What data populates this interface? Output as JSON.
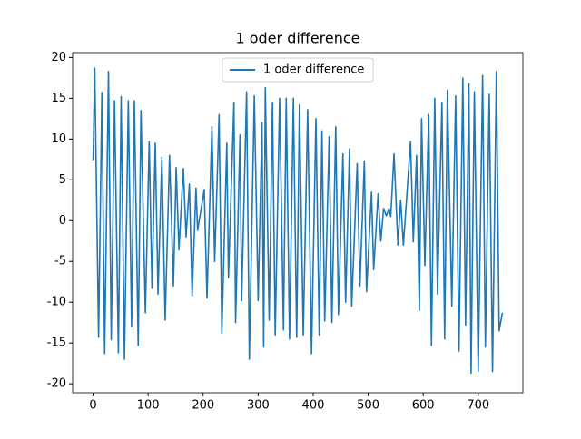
{
  "chart_data": {
    "type": "line",
    "title": "1 oder difference",
    "x": [
      0,
      3,
      10,
      16,
      21,
      28,
      33,
      39,
      46,
      51,
      57,
      64,
      70,
      75,
      82,
      87,
      95,
      102,
      107,
      113,
      118,
      125,
      131,
      139,
      146,
      151,
      156,
      164,
      169,
      175,
      180,
      187,
      190,
      202,
      207,
      216,
      221,
      229,
      234,
      243,
      246,
      256,
      259,
      267,
      270,
      279,
      284,
      293,
      300,
      307,
      310,
      313,
      320,
      326,
      331,
      339,
      346,
      351,
      357,
      364,
      370,
      375,
      382,
      390,
      397,
      405,
      411,
      416,
      421,
      429,
      434,
      441,
      446,
      454,
      459,
      466,
      470,
      480,
      485,
      493,
      497,
      506,
      510,
      518,
      523,
      528,
      533,
      538,
      541,
      547,
      554,
      559,
      564,
      577,
      582,
      588,
      593,
      597,
      603,
      610,
      615,
      621,
      626,
      634,
      639,
      644,
      652,
      659,
      665,
      672,
      677,
      683,
      687,
      693,
      700,
      708,
      713,
      720,
      726,
      733,
      738,
      744
    ],
    "series": [
      {
        "name": "1 oder difference",
        "color": "#1f77b4",
        "values": [
          7.4,
          18.7,
          -14.3,
          15.7,
          -16.3,
          18.3,
          -14.6,
          14.7,
          -16.2,
          15.2,
          -17,
          14.7,
          -13,
          14.7,
          -15.3,
          13.5,
          -11.3,
          9.7,
          -8.3,
          9.5,
          -9,
          7.8,
          -12.2,
          8,
          -8,
          6.5,
          -3.6,
          6.4,
          -2,
          4.5,
          -9.2,
          4,
          -1.2,
          3.8,
          -9.5,
          11.5,
          -5,
          13,
          -13.8,
          9.5,
          -7,
          14.5,
          -12.5,
          10.5,
          -9.8,
          15.8,
          -17,
          15.3,
          -9.8,
          12,
          -15.5,
          16.3,
          -12.2,
          14.5,
          -14,
          15,
          -13.4,
          15,
          -14.5,
          15,
          -14.3,
          14.2,
          -14,
          13.6,
          -16.3,
          12.5,
          -14,
          11,
          -12.3,
          10.3,
          -12.5,
          11.5,
          -11.5,
          8.2,
          -10,
          8.8,
          -10.5,
          7,
          -8,
          7.3,
          -8.7,
          3.5,
          -6,
          3.3,
          -2.5,
          1.5,
          0.6,
          1.5,
          0.5,
          8.2,
          -3,
          2.5,
          -3,
          9.7,
          -2.6,
          8,
          -11,
          12.5,
          -5.5,
          13,
          -15.3,
          15,
          -9,
          14.5,
          -14.5,
          16,
          -10.5,
          15.3,
          -16,
          17.5,
          -12.8,
          16.8,
          -18.7,
          15.8,
          -18.5,
          17.8,
          -15.5,
          15.5,
          -18.5,
          18.3,
          -13.5,
          -11.3
        ]
      }
    ],
    "xlim": [
      -37.2,
      781.2
    ],
    "ylim": [
      -21.1,
      20.6
    ],
    "xticks": [
      0,
      100,
      200,
      300,
      400,
      500,
      600,
      700
    ],
    "yticks": [
      -20,
      -15,
      -10,
      -5,
      0,
      5,
      10,
      15,
      20
    ],
    "legend": "upper center"
  }
}
